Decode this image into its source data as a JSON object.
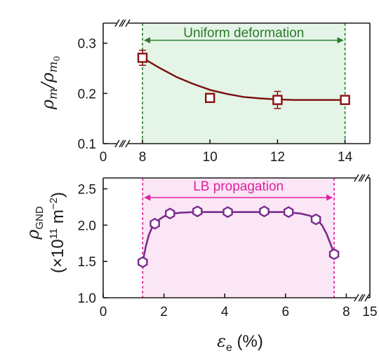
{
  "chart_data": [
    {
      "type": "scatter",
      "panel": "top",
      "ylabel": "ρm/ρm0",
      "xlim": [
        8,
        15
      ],
      "ylim": [
        0.1,
        0.34
      ],
      "xticks": [
        8,
        10,
        12,
        14
      ],
      "xtick_labels": [
        "8",
        "10",
        "12",
        "14"
      ],
      "x_axis_break_left_label": "0",
      "yticks": [
        0.1,
        0.2,
        0.3
      ],
      "ytick_labels": [
        "0.1",
        "0.2",
        "0.3"
      ],
      "series": [
        {
          "x": [
            8,
            10,
            12,
            14
          ],
          "y": [
            0.271,
            0.191,
            0.187,
            0.187
          ],
          "yerr": [
            0.015,
            0.003,
            0.017,
            0.007
          ],
          "marker": "square",
          "color": "#8b1010"
        }
      ],
      "fit_curve": {
        "x": [
          8,
          8.5,
          9,
          9.5,
          10,
          10.5,
          11,
          11.5,
          12,
          12.5,
          13,
          13.5,
          14
        ],
        "y": [
          0.271,
          0.251,
          0.233,
          0.219,
          0.207,
          0.199,
          0.193,
          0.19,
          0.188,
          0.187,
          0.187,
          0.187,
          0.187
        ],
        "color": "#7a0e0e"
      },
      "shaded_region": {
        "x": [
          8,
          14
        ],
        "color": "#e4f5e7"
      },
      "vlines": [
        8,
        14
      ],
      "annotation": {
        "text": "Uniform deformation",
        "color": "#2a7a2a",
        "x_from": 8,
        "x_to": 14,
        "y": 0.31
      }
    },
    {
      "type": "scatter",
      "panel": "bottom",
      "ylabel": "ρGND",
      "ylabel_units_prefix": "(×10",
      "ylabel_units_exp": "11",
      "ylabel_units_mid": " m",
      "ylabel_units_exp2": "−2",
      "ylabel_units_suffix": ")",
      "xlabel": "εe (%)",
      "xlabel_symbol": "ε",
      "xlabel_sub": "e",
      "xlabel_suffix": " (%)",
      "xlim": [
        0,
        8.3
      ],
      "ylim": [
        1.0,
        2.65
      ],
      "xticks": [
        0,
        2,
        4,
        6,
        8
      ],
      "xtick_labels": [
        "0",
        "2",
        "4",
        "6",
        "8"
      ],
      "x_axis_break_right_label": "15",
      "yticks": [
        1.0,
        1.5,
        2.0,
        2.5
      ],
      "ytick_labels": [
        "1.0",
        "1.5",
        "2.0",
        "2.5"
      ],
      "series": [
        {
          "x": [
            1.3,
            1.7,
            2.2,
            3.1,
            4.1,
            5.3,
            6.1,
            7.0,
            7.6
          ],
          "y": [
            1.49,
            2.02,
            2.16,
            2.19,
            2.18,
            2.19,
            2.18,
            2.08,
            1.6
          ],
          "marker": "hexagon",
          "color": "#7b2c8e"
        }
      ],
      "fit_curve": {
        "x": [
          1.3,
          1.4,
          1.5,
          1.6,
          1.7,
          1.85,
          2.0,
          2.2,
          2.5,
          3.0,
          4.0,
          5.0,
          6.0,
          6.5,
          6.8,
          7.0,
          7.2,
          7.35,
          7.5,
          7.6
        ],
        "y": [
          1.49,
          1.7,
          1.86,
          1.96,
          2.02,
          2.08,
          2.12,
          2.15,
          2.17,
          2.18,
          2.18,
          2.18,
          2.18,
          2.16,
          2.13,
          2.09,
          2.0,
          1.88,
          1.72,
          1.6
        ],
        "color": "#7b2c8e"
      },
      "shaded_region": {
        "x": [
          1.3,
          7.6
        ],
        "color": "#fbe6f6"
      },
      "vlines": [
        1.3,
        7.6
      ],
      "annotation": {
        "text": "LB propagation",
        "color": "#e020a0",
        "x_from": 1.3,
        "x_to": 7.6,
        "y": 2.53
      }
    }
  ]
}
